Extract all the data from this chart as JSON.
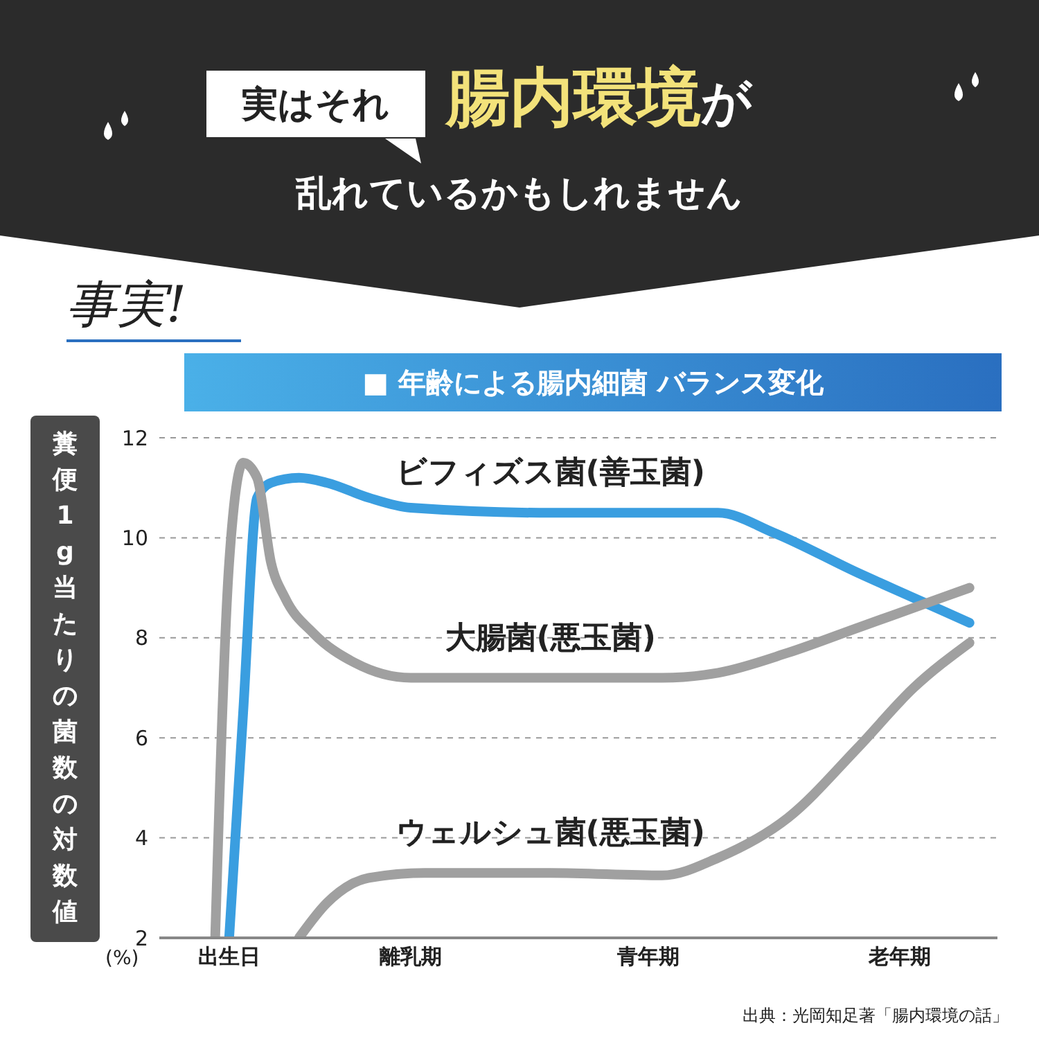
{
  "chart_data": {
    "type": "line",
    "title": "腸内環境が",
    "subtitle": "乱れているかもしれません",
    "ylabel": "糞便1g当たりの菌数の対数値",
    "annotations": [
      "実はそれ",
      "事実!",
      "■ 年齢による腸内細菌 バランス変化",
      "(%)",
      "出典：光岡知足著「腸内環境の話」"
    ],
    "categories": [
      null,
      null,
      null,
      null,
      null,
      "出生日",
      null,
      null,
      null,
      null,
      null,
      null,
      null,
      null,
      null,
      null,
      null,
      null,
      "離乳期",
      null,
      null,
      null,
      null,
      null,
      null,
      null,
      null,
      null,
      null,
      null,
      null,
      null,
      null,
      null,
      null,
      "青年期",
      null,
      null,
      null,
      null,
      null,
      null,
      null,
      null,
      null,
      null,
      null,
      null,
      null,
      null,
      null,
      null,
      null,
      "老年期",
      null,
      null,
      null,
      null,
      null,
      null,
      null
    ],
    "ylim": [
      2,
      12
    ],
    "yticks": [
      2,
      4,
      6,
      8,
      10,
      12
    ],
    "grid": "y",
    "legend": false,
    "marker": "none",
    "line_style": "solid",
    "series": [
      {
        "name": "ビフィズス菌(善玉菌)",
        "color": "#3a9ee0",
        "values": [
          null,
          null,
          null,
          null,
          null,
          2,
          6.5,
          10.8,
          11.1,
          null,
          11.2,
          null,
          11.1,
          null,
          null,
          10.8,
          null,
          null,
          10.6,
          null,
          null,
          null,
          null,
          null,
          null,
          null,
          null,
          null,
          10.5,
          null,
          null,
          null,
          null,
          null,
          null,
          null,
          null,
          null,
          null,
          null,
          10.5,
          null,
          null,
          null,
          10.1,
          null,
          null,
          null,
          null,
          null,
          9.3,
          null,
          null,
          null,
          8.8,
          null,
          null,
          null,
          8.3,
          null,
          null
        ]
      },
      {
        "name": "大腸菌(悪玉菌)",
        "color": "#a0a0a0",
        "values": [
          null,
          null,
          null,
          null,
          2,
          9.5,
          11.5,
          11.2,
          9.5,
          8.8,
          null,
          8.1,
          null,
          null,
          7.5,
          null,
          null,
          null,
          7.2,
          null,
          null,
          null,
          null,
          null,
          null,
          null,
          null,
          null,
          7.2,
          null,
          null,
          null,
          null,
          null,
          null,
          null,
          7.2,
          null,
          null,
          null,
          7.3,
          null,
          null,
          null,
          null,
          7.7,
          null,
          null,
          null,
          null,
          8.2,
          null,
          null,
          null,
          null,
          8.7,
          null,
          null,
          9.0,
          null,
          null
        ]
      },
      {
        "name": "ウェルシュ菌(悪玉菌)",
        "color": "#a0a0a0",
        "values": [
          null,
          null,
          null,
          null,
          null,
          null,
          null,
          null,
          null,
          null,
          2,
          null,
          2.7,
          null,
          null,
          3.2,
          null,
          null,
          null,
          3.3,
          null,
          null,
          null,
          null,
          null,
          null,
          null,
          null,
          3.3,
          null,
          null,
          null,
          null,
          null,
          null,
          null,
          3.25,
          null,
          null,
          null,
          3.6,
          null,
          null,
          null,
          null,
          4.4,
          null,
          null,
          null,
          null,
          5.8,
          null,
          null,
          null,
          7.0,
          null,
          null,
          null,
          7.9,
          null,
          null
        ]
      }
    ]
  }
}
